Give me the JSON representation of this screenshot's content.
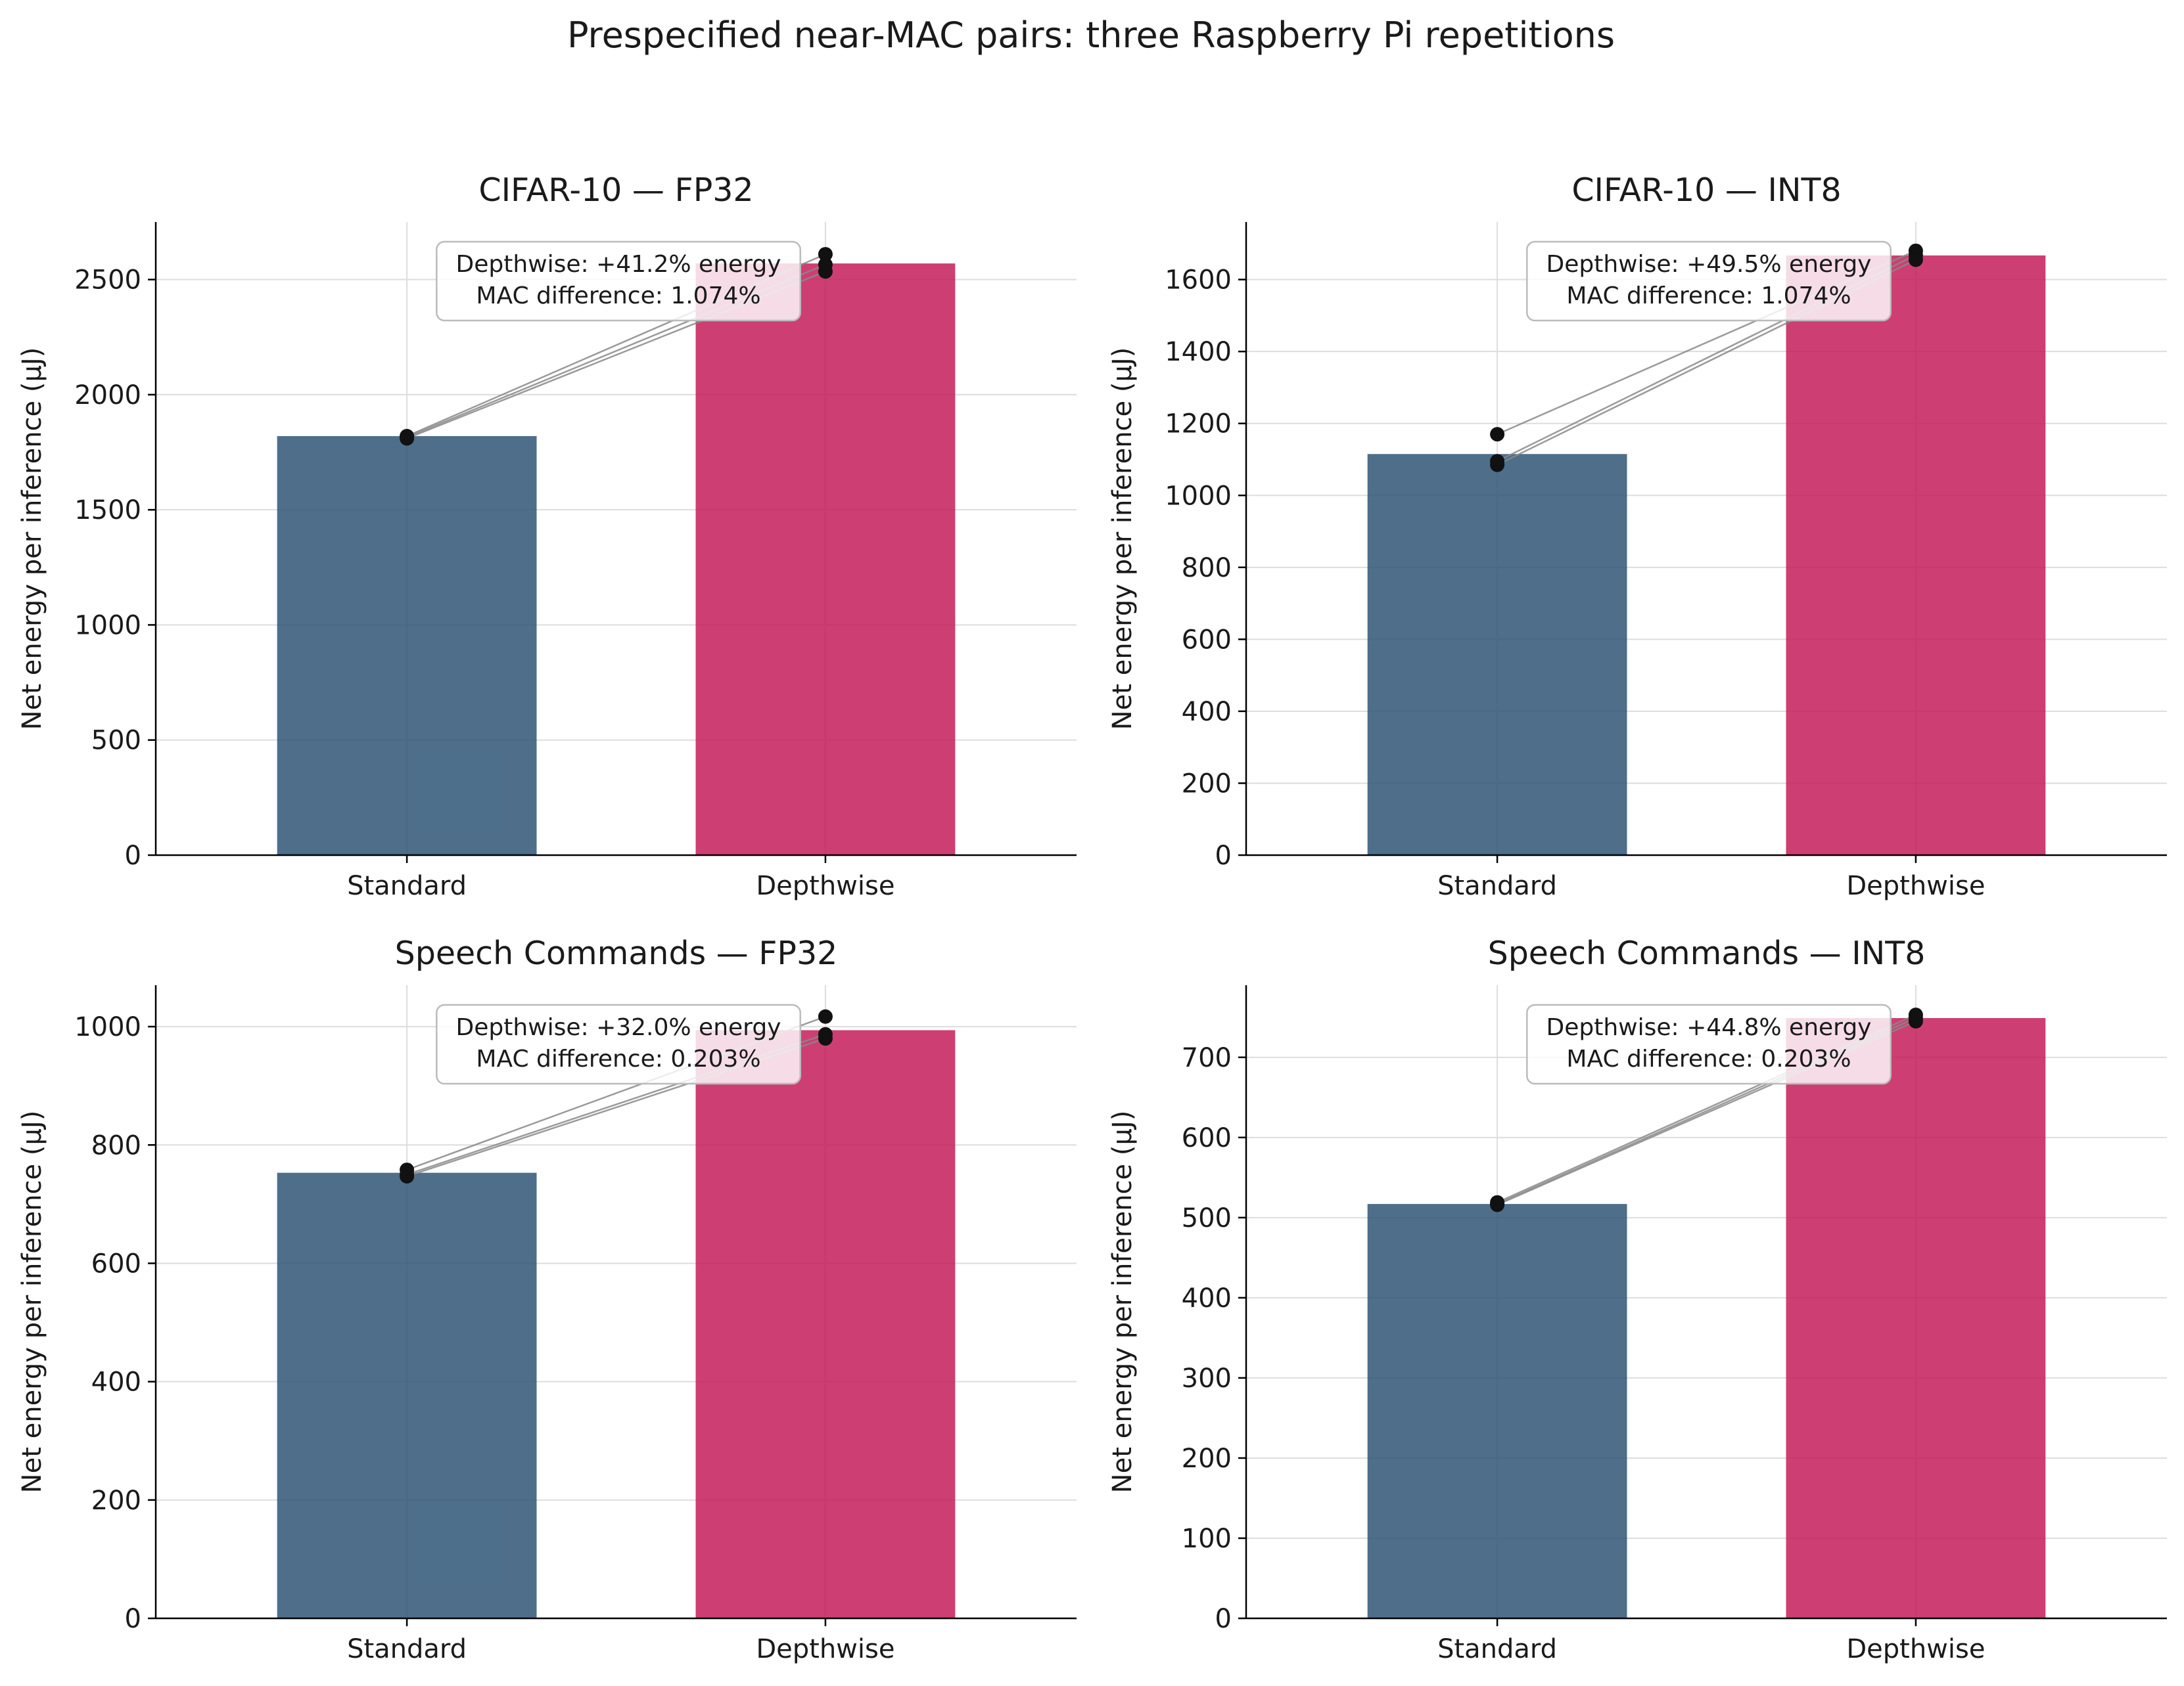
{
  "figure": {
    "suptitle": "Prespecified near-MAC pairs: three Raspberry Pi repetitions",
    "colors": {
      "standard": "#2f5576",
      "depthwise": "#c41d5a",
      "points": "#111111",
      "pair_lines": "#888888",
      "grid": "#dddddd"
    }
  },
  "chart_data": [
    {
      "type": "bar",
      "title": "CIFAR-10 — FP32",
      "ylabel": "Net energy per inference (µJ)",
      "categories": [
        "Standard",
        "Depthwise"
      ],
      "values": [
        1820,
        2570
      ],
      "repetitions": {
        "Standard": [
          1810,
          1815,
          1820
        ],
        "Depthwise": [
          2535,
          2565,
          2610
        ]
      },
      "ylim": [
        0,
        2750
      ],
      "yticks": [
        0,
        500,
        1000,
        1500,
        2000,
        2500
      ],
      "annotation": [
        "Depthwise: +41.2% energy",
        "MAC difference: 1.074%"
      ]
    },
    {
      "type": "bar",
      "title": "CIFAR-10 — INT8",
      "ylabel": "Net energy per inference (µJ)",
      "categories": [
        "Standard",
        "Depthwise"
      ],
      "values": [
        1115,
        1667
      ],
      "repetitions": {
        "Standard": [
          1170,
          1095,
          1085
        ],
        "Depthwise": [
          1680,
          1668,
          1655
        ]
      },
      "ylim": [
        0,
        1760
      ],
      "yticks": [
        0,
        200,
        400,
        600,
        800,
        1000,
        1200,
        1400,
        1600
      ],
      "annotation": [
        "Depthwise: +49.5% energy",
        "MAC difference: 1.074%"
      ]
    },
    {
      "type": "bar",
      "title": "Speech Commands — FP32",
      "ylabel": "Net energy per inference (µJ)",
      "categories": [
        "Standard",
        "Depthwise"
      ],
      "values": [
        753,
        994
      ],
      "repetitions": {
        "Standard": [
          758,
          750,
          747
        ],
        "Depthwise": [
          1017,
          987,
          980
        ]
      },
      "ylim": [
        0,
        1070
      ],
      "yticks": [
        0,
        200,
        400,
        600,
        800,
        1000
      ],
      "annotation": [
        "Depthwise: +32.0% energy",
        "MAC difference: 0.203%"
      ]
    },
    {
      "type": "bar",
      "title": "Speech Commands — INT8",
      "ylabel": "Net energy per inference (µJ)",
      "categories": [
        "Standard",
        "Depthwise"
      ],
      "values": [
        517,
        749
      ],
      "repetitions": {
        "Standard": [
          519,
          517,
          516
        ],
        "Depthwise": [
          753,
          749,
          745
        ]
      },
      "ylim": [
        0,
        790
      ],
      "yticks": [
        0,
        100,
        200,
        300,
        400,
        500,
        600,
        700
      ],
      "annotation": [
        "Depthwise: +44.8% energy",
        "MAC difference: 0.203%"
      ]
    }
  ]
}
